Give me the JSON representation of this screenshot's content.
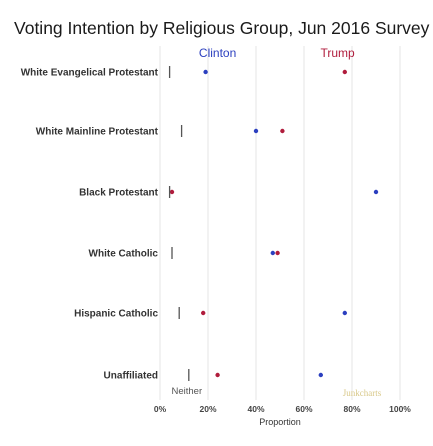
{
  "chart_data": {
    "type": "scatter",
    "title": "Voting Intention by Religious Group, Jun 2016 Survey",
    "xlabel": "Proportion",
    "ylabel": "",
    "xlim": [
      0,
      100
    ],
    "x_ticks": [
      "0%",
      "20%",
      "40%",
      "60%",
      "80%",
      "100%"
    ],
    "x_tick_values": [
      0,
      20,
      40,
      60,
      80,
      100
    ],
    "categories": [
      "White Evangelical Protestant",
      "White Mainline Protestant",
      "Black Protestant",
      "White Catholic",
      "Hispanic Catholic",
      "Unaffiliated"
    ],
    "series": [
      {
        "name": "Clinton",
        "color": "#2b3fbf",
        "values": [
          19,
          40,
          90,
          47,
          77,
          67
        ]
      },
      {
        "name": "Trump",
        "color": "#b01c3c",
        "values": [
          77,
          51,
          5,
          49,
          18,
          24
        ]
      },
      {
        "name": "Neither",
        "color": "#555555",
        "marker": "bar",
        "values": [
          4,
          9,
          4,
          5,
          8,
          12
        ]
      }
    ],
    "grid": "vertical",
    "credit": "Junkcharts",
    "credit_color": "#d9c98a"
  }
}
